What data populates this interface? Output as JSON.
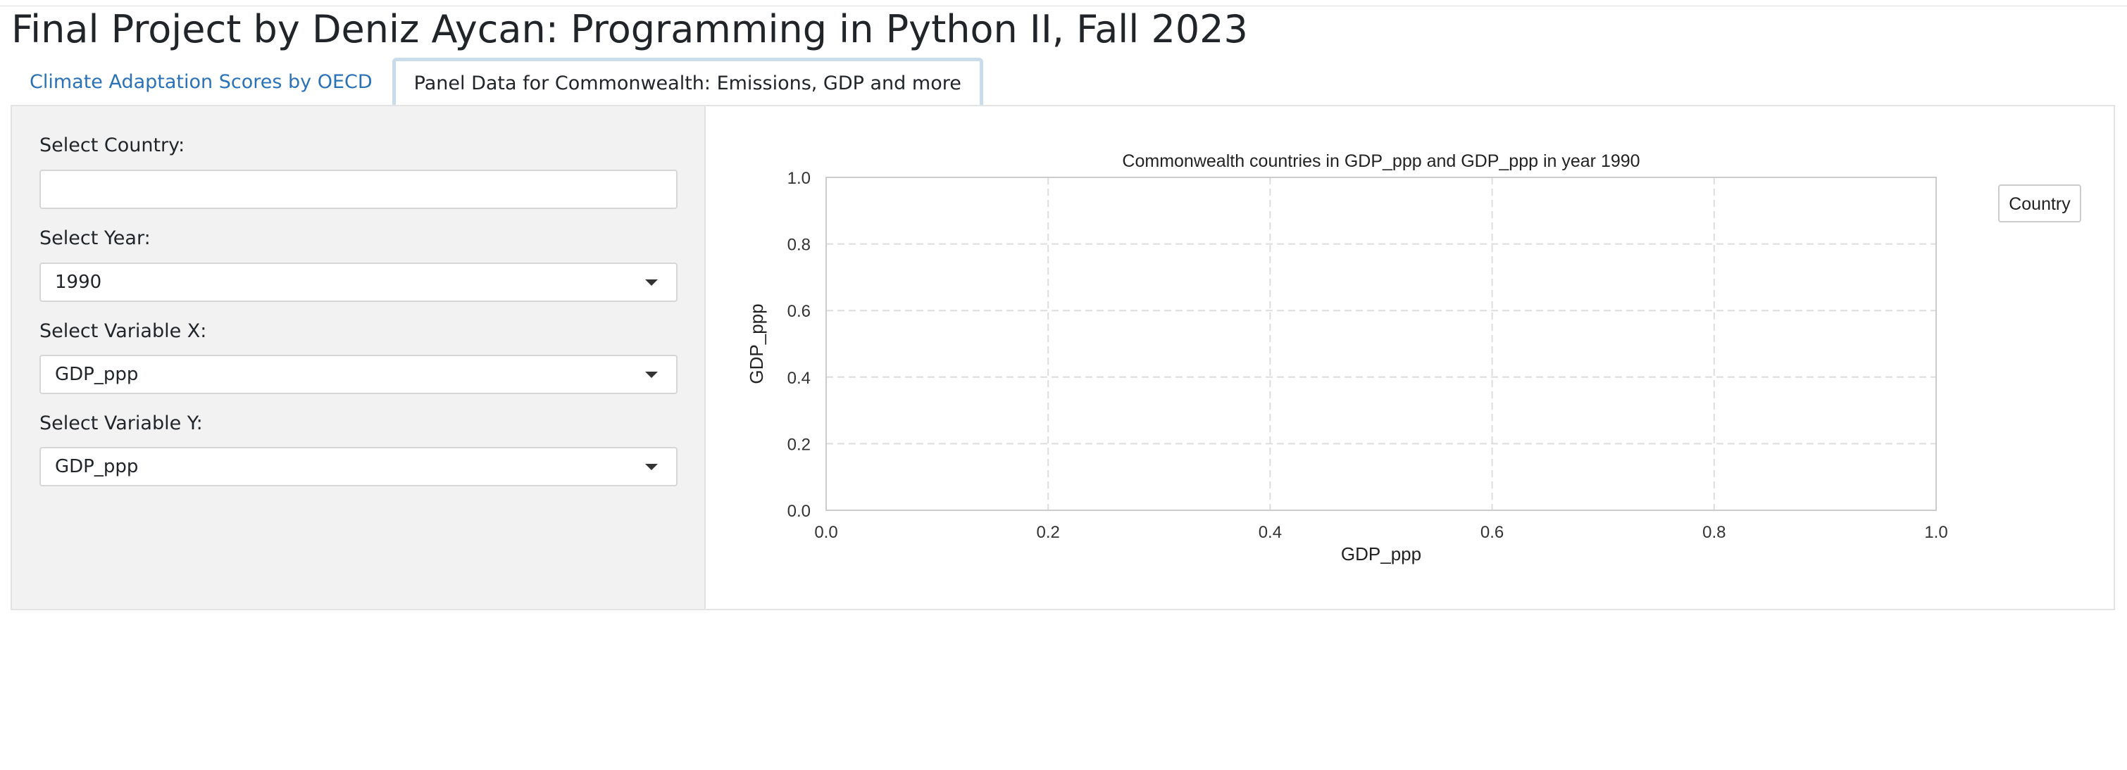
{
  "page_title": "Final Project by Deniz Aycan: Programming in Python II, Fall 2023",
  "tabs": [
    {
      "label": "Climate Adaptation Scores by OECD",
      "active": false
    },
    {
      "label": "Panel Data for Commonwealth: Emissions, GDP and more",
      "active": true
    }
  ],
  "sidebar": {
    "country": {
      "label": "Select Country:",
      "value": "",
      "placeholder": ""
    },
    "year": {
      "label": "Select Year:",
      "value": "1990"
    },
    "var_x": {
      "label": "Select Variable X:",
      "value": "GDP_ppp"
    },
    "var_y": {
      "label": "Select Variable Y:",
      "value": "GDP_ppp"
    }
  },
  "chart_data": {
    "type": "scatter",
    "title": "Commonwealth countries in GDP_ppp and GDP_ppp in year 1990",
    "xlabel": "GDP_ppp",
    "ylabel": "GDP_ppp",
    "xlim": [
      0,
      1
    ],
    "ylim": [
      0,
      1
    ],
    "xticks": [
      "0.0",
      "0.2",
      "0.4",
      "0.6",
      "0.8",
      "1.0"
    ],
    "yticks": [
      "0.0",
      "0.2",
      "0.4",
      "0.6",
      "0.8",
      "1.0"
    ],
    "grid": true,
    "grid_style": "dashed",
    "legend": {
      "title": "Country",
      "placement": "upper-right-outside",
      "entries": []
    },
    "series": []
  },
  "colors": {
    "tab_link": "#2a72b7",
    "sidebar_bg": "#f2f2f2",
    "grid": "#dddddd",
    "axis": "#cccccc"
  }
}
